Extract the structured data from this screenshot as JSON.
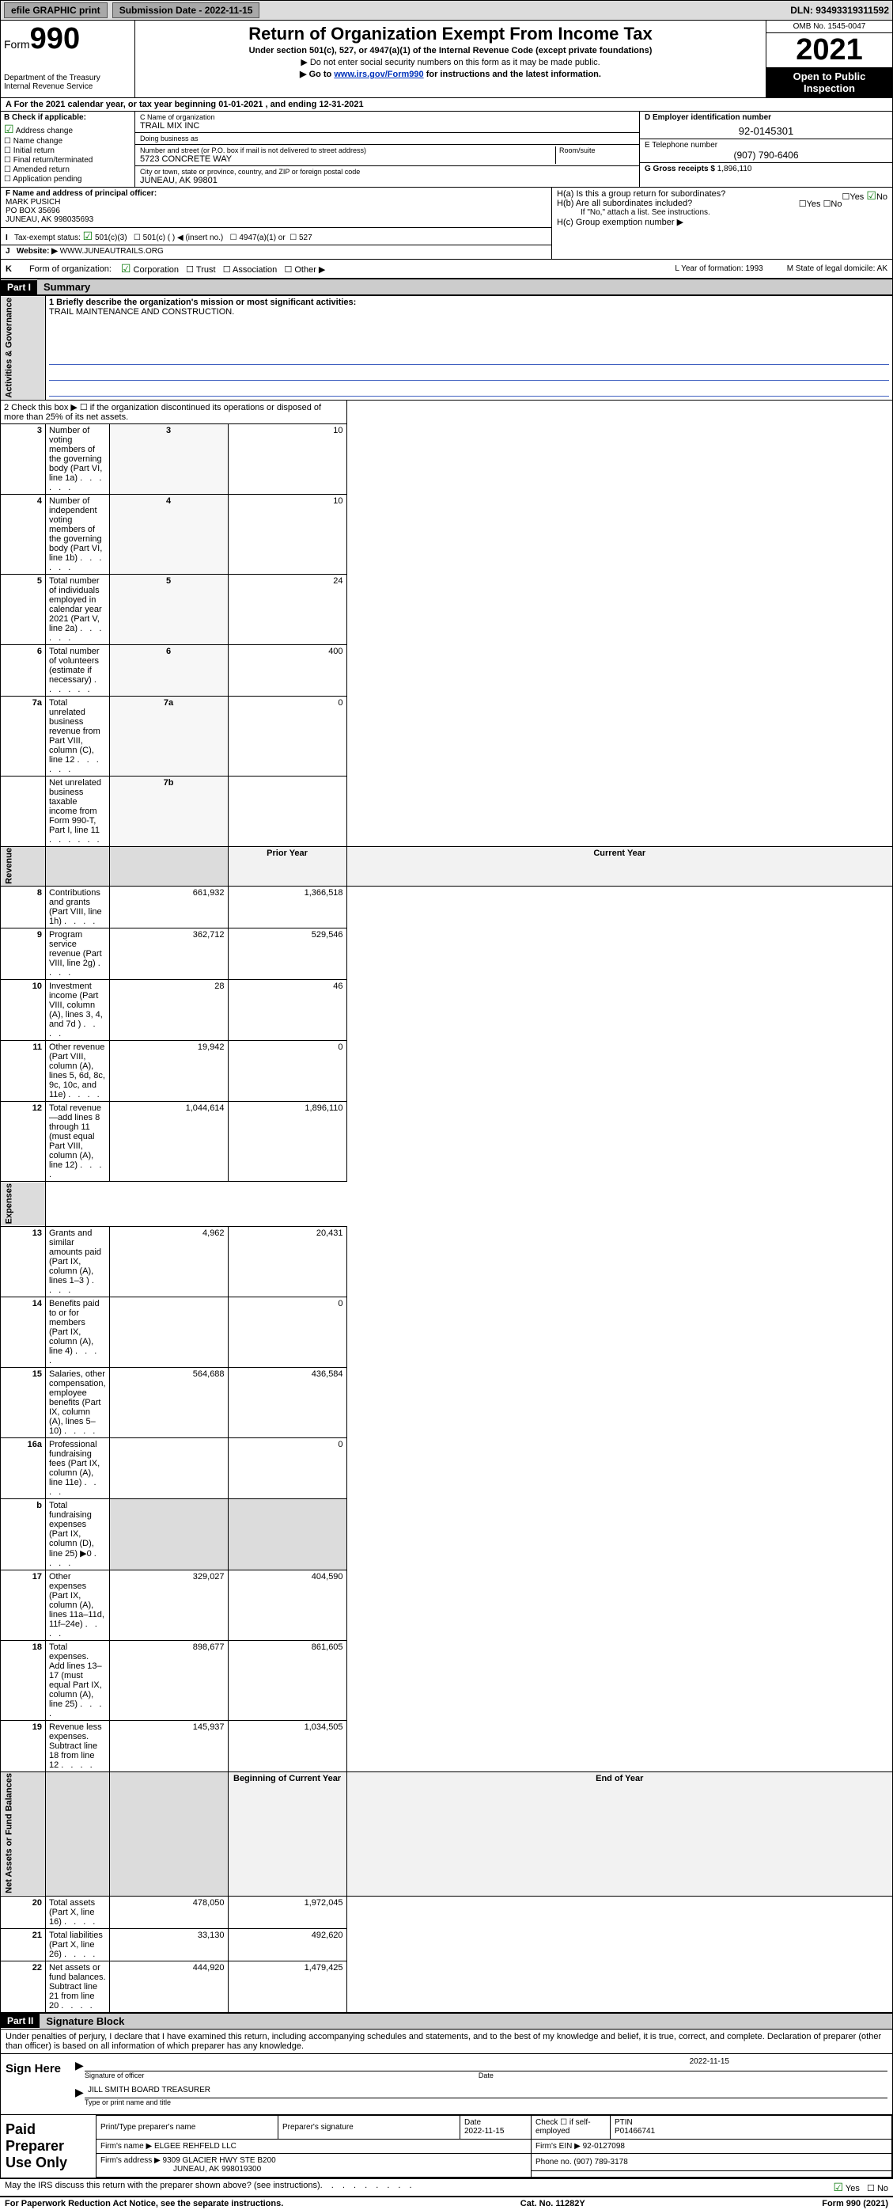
{
  "topbar": {
    "efile_label": "efile GRAPHIC print",
    "submission_label": "Submission Date - 2022-11-15",
    "dln": "DLN: 93493319311592"
  },
  "header": {
    "form_small": "Form",
    "form_big": "990",
    "dept": "Department of the Treasury",
    "irs": "Internal Revenue Service",
    "title": "Return of Organization Exempt From Income Tax",
    "sub": "Under section 501(c), 527, or 4947(a)(1) of the Internal Revenue Code (except private foundations)",
    "arrow1": "▶ Do not enter social security numbers on this form as it may be made public.",
    "arrow2_pre": "▶ Go to ",
    "arrow2_link": "www.irs.gov/Form990",
    "arrow2_post": " for instructions and the latest information.",
    "omb": "OMB No. 1545-0047",
    "year": "2021",
    "open": "Open to Public Inspection"
  },
  "row_a": "A For the 2021 calendar year, or tax year beginning 01-01-2021   , and ending 12-31-2021",
  "box_b": {
    "label": "B Check if applicable:",
    "opts": [
      "Address change",
      "Name change",
      "Initial return",
      "Final return/terminated",
      "Amended return",
      "Application pending"
    ],
    "checked_index": 0
  },
  "box_c": {
    "name_label": "C Name of organization",
    "name": "TRAIL MIX INC",
    "dba_label": "Doing business as",
    "dba": "",
    "addr_label": "Number and street (or P.O. box if mail is not delivered to street address)",
    "room_label": "Room/suite",
    "addr": "5723 CONCRETE WAY",
    "city_label": "City or town, state or province, country, and ZIP or foreign postal code",
    "city": "JUNEAU, AK  99801"
  },
  "box_d": {
    "label": "D Employer identification number",
    "val": "92-0145301"
  },
  "box_e": {
    "label": "E Telephone number",
    "val": "(907) 790-6406"
  },
  "box_g": {
    "label": "G Gross receipts $",
    "val": "1,896,110"
  },
  "box_f": {
    "label": "F Name and address of principal officer:",
    "name": "MARK PUSICH",
    "addr1": "PO BOX 35696",
    "addr2": "JUNEAU, AK  998035693"
  },
  "box_h": {
    "a": "H(a)  Is this a group return for subordinates?",
    "a_ans": "No",
    "b": "H(b)  Are all subordinates included?",
    "b_note": "If \"No,\" attach a list. See instructions.",
    "c": "H(c)  Group exemption number ▶"
  },
  "row_i": {
    "lead": "I",
    "label": "Tax-exempt status:",
    "opt1": "501(c)(3)",
    "opt2": "501(c) (  ) ◀ (insert no.)",
    "opt3": "4947(a)(1) or",
    "opt4": "527"
  },
  "row_j": {
    "lead": "J",
    "label": "Website: ▶",
    "val": "WWW.JUNEAUTRAILS.ORG"
  },
  "row_k": {
    "lead": "K",
    "label": "Form of organization:",
    "opts": [
      "Corporation",
      "Trust",
      "Association",
      "Other ▶"
    ],
    "l_label": "L Year of formation: 1993",
    "m_label": "M State of legal domicile: AK"
  },
  "part1": {
    "num": "Part I",
    "title": "Summary"
  },
  "mission_label": "1   Briefly describe the organization's mission or most significant activities:",
  "mission": "TRAIL MAINTENANCE AND CONSTRUCTION.",
  "line2": "2   Check this box ▶ ☐  if the organization discontinued its operations or disposed of more than 25% of its net assets.",
  "sidelabels": {
    "gov": "Activities & Governance",
    "rev": "Revenue",
    "exp": "Expenses",
    "net": "Net Assets or Fund Balances"
  },
  "col_headers": {
    "prior": "Prior Year",
    "curr": "Current Year",
    "beg": "Beginning of Current Year",
    "end": "End of Year"
  },
  "lines_single": [
    {
      "n": "3",
      "d": "Number of voting members of the governing body (Part VI, line 1a)",
      "ln": "3",
      "v": "10"
    },
    {
      "n": "4",
      "d": "Number of independent voting members of the governing body (Part VI, line 1b)",
      "ln": "4",
      "v": "10"
    },
    {
      "n": "5",
      "d": "Total number of individuals employed in calendar year 2021 (Part V, line 2a)",
      "ln": "5",
      "v": "24"
    },
    {
      "n": "6",
      "d": "Total number of volunteers (estimate if necessary)",
      "ln": "6",
      "v": "400"
    },
    {
      "n": "7a",
      "d": "Total unrelated business revenue from Part VIII, column (C), line 12",
      "ln": "7a",
      "v": "0"
    },
    {
      "n": "",
      "d": "Net unrelated business taxable income from Form 990-T, Part I, line 11",
      "ln": "7b",
      "v": ""
    }
  ],
  "lines_rev": [
    {
      "n": "8",
      "d": "Contributions and grants (Part VIII, line 1h)",
      "p": "661,932",
      "c": "1,366,518"
    },
    {
      "n": "9",
      "d": "Program service revenue (Part VIII, line 2g)",
      "p": "362,712",
      "c": "529,546"
    },
    {
      "n": "10",
      "d": "Investment income (Part VIII, column (A), lines 3, 4, and 7d )",
      "p": "28",
      "c": "46"
    },
    {
      "n": "11",
      "d": "Other revenue (Part VIII, column (A), lines 5, 6d, 8c, 9c, 10c, and 11e)",
      "p": "19,942",
      "c": "0"
    },
    {
      "n": "12",
      "d": "Total revenue—add lines 8 through 11 (must equal Part VIII, column (A), line 12)",
      "p": "1,044,614",
      "c": "1,896,110"
    }
  ],
  "lines_exp": [
    {
      "n": "13",
      "d": "Grants and similar amounts paid (Part IX, column (A), lines 1–3 )",
      "p": "4,962",
      "c": "20,431"
    },
    {
      "n": "14",
      "d": "Benefits paid to or for members (Part IX, column (A), line 4)",
      "p": "",
      "c": "0"
    },
    {
      "n": "15",
      "d": "Salaries, other compensation, employee benefits (Part IX, column (A), lines 5–10)",
      "p": "564,688",
      "c": "436,584"
    },
    {
      "n": "16a",
      "d": "Professional fundraising fees (Part IX, column (A), line 11e)",
      "p": "",
      "c": "0"
    },
    {
      "n": "b",
      "d": "Total fundraising expenses (Part IX, column (D), line 25) ▶0",
      "p": "__SHADE__",
      "c": "__SHADE__"
    },
    {
      "n": "17",
      "d": "Other expenses (Part IX, column (A), lines 11a–11d, 11f–24e)",
      "p": "329,027",
      "c": "404,590"
    },
    {
      "n": "18",
      "d": "Total expenses. Add lines 13–17 (must equal Part IX, column (A), line 25)",
      "p": "898,677",
      "c": "861,605"
    },
    {
      "n": "19",
      "d": "Revenue less expenses. Subtract line 18 from line 12",
      "p": "145,937",
      "c": "1,034,505"
    }
  ],
  "lines_net": [
    {
      "n": "20",
      "d": "Total assets (Part X, line 16)",
      "p": "478,050",
      "c": "1,972,045"
    },
    {
      "n": "21",
      "d": "Total liabilities (Part X, line 26)",
      "p": "33,130",
      "c": "492,620"
    },
    {
      "n": "22",
      "d": "Net assets or fund balances. Subtract line 21 from line 20",
      "p": "444,920",
      "c": "1,479,425"
    }
  ],
  "part2": {
    "num": "Part II",
    "title": "Signature Block"
  },
  "sig_text": "Under penalties of perjury, I declare that I have examined this return, including accompanying schedules and statements, and to the best of my knowledge and belief, it is true, correct, and complete. Declaration of preparer (other than officer) is based on all information of which preparer has any knowledge.",
  "sign": {
    "here": "Sign Here",
    "date": "2022-11-15",
    "sig_label": "Signature of officer",
    "date_label": "Date",
    "name": "JILL SMITH  BOARD TREASURER",
    "name_label": "Type or print name and title"
  },
  "paid": {
    "title": "Paid Preparer Use Only",
    "h1": "Print/Type preparer's name",
    "h2": "Preparer's signature",
    "h3": "Date",
    "h3v": "2022-11-15",
    "h4": "Check ☐ if self-employed",
    "h5": "PTIN",
    "h5v": "P01466741",
    "firm_label": "Firm's name    ▶",
    "firm": "ELGEE REHFELD LLC",
    "ein_label": "Firm's EIN ▶",
    "ein": "92-0127098",
    "addr_label": "Firm's address ▶",
    "addr1": "9309 GLACIER HWY STE B200",
    "addr2": "JUNEAU, AK  998019300",
    "phone_label": "Phone no.",
    "phone": "(907) 789-3178"
  },
  "footer1": {
    "q": "May the IRS discuss this return with the preparer shown above? (see instructions)",
    "yes": "Yes",
    "no": "No"
  },
  "footer2": {
    "l": "For Paperwork Reduction Act Notice, see the separate instructions.",
    "c": "Cat. No. 11282Y",
    "r": "Form 990 (2021)"
  }
}
